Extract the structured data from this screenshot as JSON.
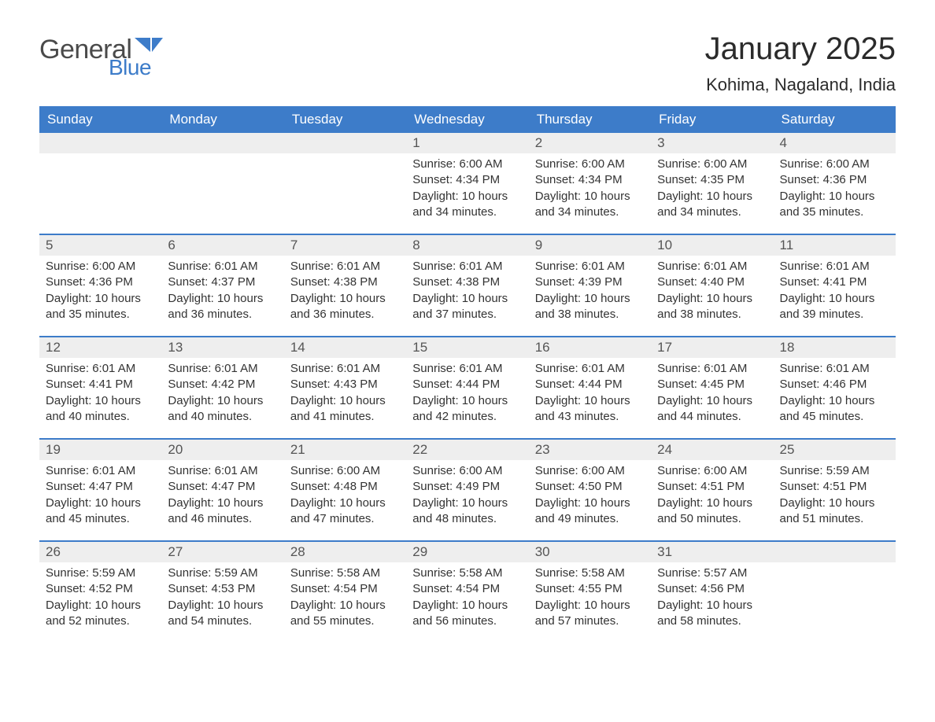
{
  "logo": {
    "word1": "General",
    "word2": "Blue"
  },
  "title": "January 2025",
  "location": "Kohima, Nagaland, India",
  "colors": {
    "header_bg": "#3d7cc9",
    "header_text": "#ffffff",
    "daynum_bg": "#eeeeee",
    "row_divider": "#3d7cc9",
    "body_text": "#333333",
    "background": "#ffffff"
  },
  "typography": {
    "title_fontsize": 40,
    "location_fontsize": 22,
    "dayhead_fontsize": 17,
    "daynum_fontsize": 17,
    "body_fontsize": 15,
    "font_family": "Arial"
  },
  "dayheads": [
    "Sunday",
    "Monday",
    "Tuesday",
    "Wednesday",
    "Thursday",
    "Friday",
    "Saturday"
  ],
  "weeks": [
    [
      null,
      null,
      null,
      {
        "n": "1",
        "sr": "Sunrise: 6:00 AM",
        "ss": "Sunset: 4:34 PM",
        "d1": "Daylight: 10 hours",
        "d2": "and 34 minutes."
      },
      {
        "n": "2",
        "sr": "Sunrise: 6:00 AM",
        "ss": "Sunset: 4:34 PM",
        "d1": "Daylight: 10 hours",
        "d2": "and 34 minutes."
      },
      {
        "n": "3",
        "sr": "Sunrise: 6:00 AM",
        "ss": "Sunset: 4:35 PM",
        "d1": "Daylight: 10 hours",
        "d2": "and 34 minutes."
      },
      {
        "n": "4",
        "sr": "Sunrise: 6:00 AM",
        "ss": "Sunset: 4:36 PM",
        "d1": "Daylight: 10 hours",
        "d2": "and 35 minutes."
      }
    ],
    [
      {
        "n": "5",
        "sr": "Sunrise: 6:00 AM",
        "ss": "Sunset: 4:36 PM",
        "d1": "Daylight: 10 hours",
        "d2": "and 35 minutes."
      },
      {
        "n": "6",
        "sr": "Sunrise: 6:01 AM",
        "ss": "Sunset: 4:37 PM",
        "d1": "Daylight: 10 hours",
        "d2": "and 36 minutes."
      },
      {
        "n": "7",
        "sr": "Sunrise: 6:01 AM",
        "ss": "Sunset: 4:38 PM",
        "d1": "Daylight: 10 hours",
        "d2": "and 36 minutes."
      },
      {
        "n": "8",
        "sr": "Sunrise: 6:01 AM",
        "ss": "Sunset: 4:38 PM",
        "d1": "Daylight: 10 hours",
        "d2": "and 37 minutes."
      },
      {
        "n": "9",
        "sr": "Sunrise: 6:01 AM",
        "ss": "Sunset: 4:39 PM",
        "d1": "Daylight: 10 hours",
        "d2": "and 38 minutes."
      },
      {
        "n": "10",
        "sr": "Sunrise: 6:01 AM",
        "ss": "Sunset: 4:40 PM",
        "d1": "Daylight: 10 hours",
        "d2": "and 38 minutes."
      },
      {
        "n": "11",
        "sr": "Sunrise: 6:01 AM",
        "ss": "Sunset: 4:41 PM",
        "d1": "Daylight: 10 hours",
        "d2": "and 39 minutes."
      }
    ],
    [
      {
        "n": "12",
        "sr": "Sunrise: 6:01 AM",
        "ss": "Sunset: 4:41 PM",
        "d1": "Daylight: 10 hours",
        "d2": "and 40 minutes."
      },
      {
        "n": "13",
        "sr": "Sunrise: 6:01 AM",
        "ss": "Sunset: 4:42 PM",
        "d1": "Daylight: 10 hours",
        "d2": "and 40 minutes."
      },
      {
        "n": "14",
        "sr": "Sunrise: 6:01 AM",
        "ss": "Sunset: 4:43 PM",
        "d1": "Daylight: 10 hours",
        "d2": "and 41 minutes."
      },
      {
        "n": "15",
        "sr": "Sunrise: 6:01 AM",
        "ss": "Sunset: 4:44 PM",
        "d1": "Daylight: 10 hours",
        "d2": "and 42 minutes."
      },
      {
        "n": "16",
        "sr": "Sunrise: 6:01 AM",
        "ss": "Sunset: 4:44 PM",
        "d1": "Daylight: 10 hours",
        "d2": "and 43 minutes."
      },
      {
        "n": "17",
        "sr": "Sunrise: 6:01 AM",
        "ss": "Sunset: 4:45 PM",
        "d1": "Daylight: 10 hours",
        "d2": "and 44 minutes."
      },
      {
        "n": "18",
        "sr": "Sunrise: 6:01 AM",
        "ss": "Sunset: 4:46 PM",
        "d1": "Daylight: 10 hours",
        "d2": "and 45 minutes."
      }
    ],
    [
      {
        "n": "19",
        "sr": "Sunrise: 6:01 AM",
        "ss": "Sunset: 4:47 PM",
        "d1": "Daylight: 10 hours",
        "d2": "and 45 minutes."
      },
      {
        "n": "20",
        "sr": "Sunrise: 6:01 AM",
        "ss": "Sunset: 4:47 PM",
        "d1": "Daylight: 10 hours",
        "d2": "and 46 minutes."
      },
      {
        "n": "21",
        "sr": "Sunrise: 6:00 AM",
        "ss": "Sunset: 4:48 PM",
        "d1": "Daylight: 10 hours",
        "d2": "and 47 minutes."
      },
      {
        "n": "22",
        "sr": "Sunrise: 6:00 AM",
        "ss": "Sunset: 4:49 PM",
        "d1": "Daylight: 10 hours",
        "d2": "and 48 minutes."
      },
      {
        "n": "23",
        "sr": "Sunrise: 6:00 AM",
        "ss": "Sunset: 4:50 PM",
        "d1": "Daylight: 10 hours",
        "d2": "and 49 minutes."
      },
      {
        "n": "24",
        "sr": "Sunrise: 6:00 AM",
        "ss": "Sunset: 4:51 PM",
        "d1": "Daylight: 10 hours",
        "d2": "and 50 minutes."
      },
      {
        "n": "25",
        "sr": "Sunrise: 5:59 AM",
        "ss": "Sunset: 4:51 PM",
        "d1": "Daylight: 10 hours",
        "d2": "and 51 minutes."
      }
    ],
    [
      {
        "n": "26",
        "sr": "Sunrise: 5:59 AM",
        "ss": "Sunset: 4:52 PM",
        "d1": "Daylight: 10 hours",
        "d2": "and 52 minutes."
      },
      {
        "n": "27",
        "sr": "Sunrise: 5:59 AM",
        "ss": "Sunset: 4:53 PM",
        "d1": "Daylight: 10 hours",
        "d2": "and 54 minutes."
      },
      {
        "n": "28",
        "sr": "Sunrise: 5:58 AM",
        "ss": "Sunset: 4:54 PM",
        "d1": "Daylight: 10 hours",
        "d2": "and 55 minutes."
      },
      {
        "n": "29",
        "sr": "Sunrise: 5:58 AM",
        "ss": "Sunset: 4:54 PM",
        "d1": "Daylight: 10 hours",
        "d2": "and 56 minutes."
      },
      {
        "n": "30",
        "sr": "Sunrise: 5:58 AM",
        "ss": "Sunset: 4:55 PM",
        "d1": "Daylight: 10 hours",
        "d2": "and 57 minutes."
      },
      {
        "n": "31",
        "sr": "Sunrise: 5:57 AM",
        "ss": "Sunset: 4:56 PM",
        "d1": "Daylight: 10 hours",
        "d2": "and 58 minutes."
      },
      null
    ]
  ]
}
